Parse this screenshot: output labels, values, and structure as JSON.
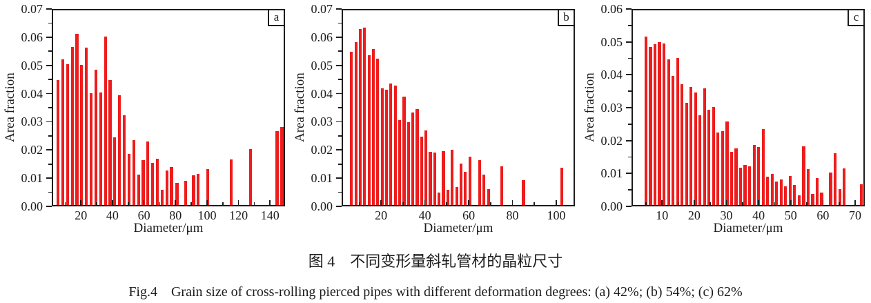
{
  "figure": {
    "caption_cn": "图 4　不同变形量斜轧管材的晶粒尺寸",
    "caption_en": "Fig.4　Grain size of cross-rolling pierced pipes with different deformation degrees: (a) 42%; (b) 54%; (c) 62%"
  },
  "colors": {
    "bar": "#ee1c1c",
    "axis": "#1c1c1c"
  },
  "chart_data": [
    {
      "type": "bar",
      "panel_label": "a",
      "xlabel": "Diameter/μm",
      "ylabel": "Area fraction",
      "xlim": [
        1.5,
        149.5
      ],
      "ylim": [
        0,
        0.07
      ],
      "xticks": [
        20,
        40,
        60,
        80,
        100,
        120,
        140
      ],
      "xtick_labels": [
        "20",
        "40",
        "60",
        "80",
        "100",
        "120",
        "140"
      ],
      "xticks_minor": [
        10,
        30,
        50,
        70,
        90,
        110,
        130
      ],
      "yticks": [
        0,
        0.01,
        0.02,
        0.03,
        0.04,
        0.05,
        0.06,
        0.07
      ],
      "ytick_labels": [
        "0.00",
        "0.01",
        "0.02",
        "0.03",
        "0.04",
        "0.05",
        "0.06",
        "0.07"
      ],
      "yticks_minor": [
        0.005,
        0.015,
        0.025,
        0.035,
        0.045,
        0.055,
        0.065
      ],
      "grid": false,
      "bars": {
        "x": [
          5.5,
          8.5,
          11.5,
          14.5,
          17.5,
          20.5,
          23.5,
          26.5,
          29.5,
          32.5,
          35.5,
          38.5,
          41.5,
          44.5,
          47.5,
          50.5,
          53.5,
          56.5,
          59.5,
          62.5,
          65.5,
          68.5,
          71.5,
          74.5,
          77.5,
          81,
          86.5,
          91.5,
          94.5,
          100.5,
          115.5,
          127.5,
          144.5,
          147.5
        ],
        "v": [
          0.0447,
          0.0521,
          0.0505,
          0.0566,
          0.0613,
          0.0503,
          0.0564,
          0.0402,
          0.0484,
          0.0405,
          0.0603,
          0.0447,
          0.0246,
          0.0395,
          0.0324,
          0.0186,
          0.0234,
          0.0113,
          0.0164,
          0.0231,
          0.0154,
          0.017,
          0.006,
          0.0128,
          0.0139,
          0.0083,
          0.0091,
          0.0109,
          0.0115,
          0.0132,
          0.0167,
          0.0202,
          0.0267,
          0.0281
        ]
      }
    },
    {
      "type": "bar",
      "panel_label": "b",
      "xlabel": "Diameter/μm",
      "ylabel": "Area fraction",
      "xlim": [
        2,
        108.5
      ],
      "ylim": [
        0,
        0.07
      ],
      "xticks": [
        20,
        40,
        60,
        80,
        100
      ],
      "xtick_labels": [
        "20",
        "40",
        "60",
        "80",
        "100"
      ],
      "xticks_minor": [
        10,
        30,
        50,
        70,
        90
      ],
      "yticks": [
        0,
        0.01,
        0.02,
        0.03,
        0.04,
        0.05,
        0.06,
        0.07
      ],
      "ytick_labels": [
        "0.00",
        "0.01",
        "0.02",
        "0.03",
        "0.04",
        "0.05",
        "0.06",
        "0.07"
      ],
      "yticks_minor": [
        0.005,
        0.015,
        0.025,
        0.035,
        0.045,
        0.055,
        0.065
      ],
      "grid": false,
      "bars": {
        "x": [
          6.5,
          8.5,
          10.5,
          12.5,
          14.5,
          16.5,
          18.5,
          20.5,
          22.5,
          24.5,
          26.5,
          28.5,
          30.5,
          32.5,
          34.5,
          36.5,
          38.5,
          40.5,
          42.5,
          44.5,
          46.5,
          48.5,
          50.5,
          52.5,
          54.5,
          56.5,
          58.5,
          60.5,
          65,
          67,
          69,
          75,
          85,
          102.5
        ],
        "v": [
          0.0549,
          0.0582,
          0.0629,
          0.0633,
          0.0536,
          0.0557,
          0.0523,
          0.0419,
          0.0413,
          0.0435,
          0.0428,
          0.0306,
          0.0388,
          0.0298,
          0.0333,
          0.0344,
          0.0248,
          0.027,
          0.0193,
          0.019,
          0.005,
          0.0197,
          0.0058,
          0.02,
          0.0068,
          0.0153,
          0.0122,
          0.0176,
          0.0163,
          0.0113,
          0.0061,
          0.0141,
          0.0092,
          0.0138
        ]
      }
    },
    {
      "type": "bar",
      "panel_label": "c",
      "xlabel": "Diameter/μm",
      "ylabel": "Area fraction",
      "xlim": [
        0.5,
        73
      ],
      "ylim": [
        0,
        0.06
      ],
      "xticks": [
        10,
        20,
        30,
        40,
        50,
        60,
        70
      ],
      "xtick_labels": [
        "10",
        "20",
        "30",
        "40",
        "50",
        "60",
        "70"
      ],
      "xticks_minor": [
        5,
        15,
        25,
        35,
        45,
        55,
        65
      ],
      "yticks": [
        0,
        0.01,
        0.02,
        0.03,
        0.04,
        0.05,
        0.06
      ],
      "ytick_labels": [
        "0.00",
        "0.01",
        "0.02",
        "0.03",
        "0.04",
        "0.05",
        "0.06"
      ],
      "yticks_minor": [
        0.005,
        0.015,
        0.025,
        0.035,
        0.045,
        0.055
      ],
      "grid": false,
      "bars": {
        "x": [
          5,
          6.4,
          7.8,
          9.2,
          10.6,
          12,
          13.4,
          14.8,
          16.2,
          17.6,
          19,
          20.4,
          21.8,
          23.2,
          24.6,
          26,
          27.4,
          28.8,
          30.2,
          31.6,
          33,
          34.4,
          35.8,
          37.2,
          38.6,
          40,
          41.4,
          42.8,
          44.2,
          45.6,
          47,
          48.4,
          49.8,
          51.2,
          52.6,
          54,
          55.4,
          56.8,
          58.2,
          59.6,
          62.4,
          63.8,
          65.2,
          66.6,
          72
        ],
        "v": [
          0.0517,
          0.0484,
          0.0493,
          0.05,
          0.0496,
          0.0446,
          0.0396,
          0.0451,
          0.0371,
          0.0314,
          0.0363,
          0.0347,
          0.0277,
          0.0359,
          0.0294,
          0.0303,
          0.0224,
          0.0228,
          0.0259,
          0.0165,
          0.0177,
          0.0117,
          0.0126,
          0.0122,
          0.0186,
          0.018,
          0.0236,
          0.0091,
          0.0098,
          0.0075,
          0.0081,
          0.006,
          0.0093,
          0.0065,
          0.0034,
          0.0182,
          0.0114,
          0.0038,
          0.0086,
          0.0042,
          0.0103,
          0.0161,
          0.0053,
          0.0115,
          0.0068
        ]
      }
    }
  ]
}
